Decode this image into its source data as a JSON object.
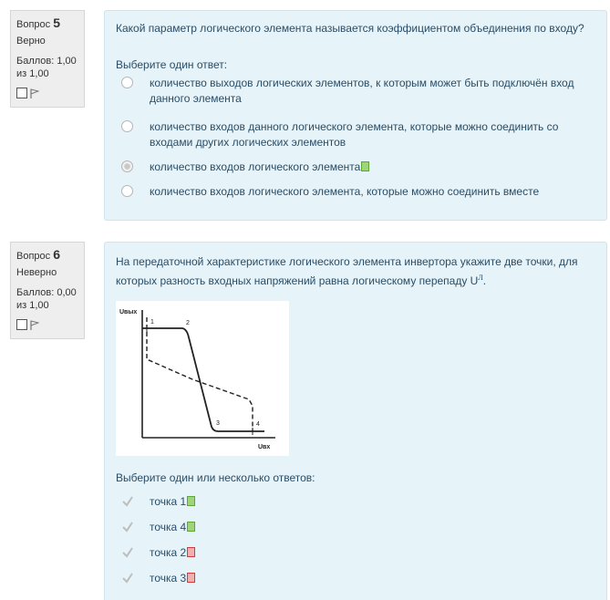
{
  "q5": {
    "label": "Вопрос",
    "number": "5",
    "state": "Верно",
    "grade": "Баллов: 1,00 из 1,00",
    "text": "Какой параметр логического элемента называется коэффициентом объединения по входу?",
    "prompt": "Выберите один ответ:",
    "options": [
      {
        "text": "количество выходов логических элементов, к которым может быть подключён вход данного элемента",
        "selected": false
      },
      {
        "text": "количество входов данного логического элемента, которые можно соединить со входами других логических элементов",
        "selected": false
      },
      {
        "text": "количество входов логического элемента",
        "selected": true,
        "mark": "correct"
      },
      {
        "text": "количество входов логического элемента, которые можно соединить вместе",
        "selected": false
      }
    ]
  },
  "q6": {
    "label": "Вопрос",
    "number": "6",
    "state": "Неверно",
    "grade": "Баллов: 0,00 из 1,00",
    "text": "На передаточной характеристике логического элемента инвертора укажите две точки, для которых разность входных напряжений равна логическому перепаду U",
    "text_sup": "Л",
    "text_end": ".",
    "graph": {
      "y_axis_label": "Uвых",
      "x_axis_label": "Uвх",
      "points": [
        "1",
        "2",
        "3",
        "4"
      ]
    },
    "prompt": "Выберите один или несколько ответов:",
    "options": [
      {
        "text": "точка 1",
        "checked": true,
        "mark": "correct"
      },
      {
        "text": "точка 4",
        "checked": true,
        "mark": "correct"
      },
      {
        "text": "точка 2",
        "checked": true,
        "mark": "incorrect"
      },
      {
        "text": "точка 3",
        "checked": true,
        "mark": "incorrect"
      }
    ]
  },
  "colors": {
    "correct": "#9fd47b",
    "incorrect": "#f3b0b0",
    "panel": "#e6f3f8",
    "text": "#2a4d66"
  }
}
